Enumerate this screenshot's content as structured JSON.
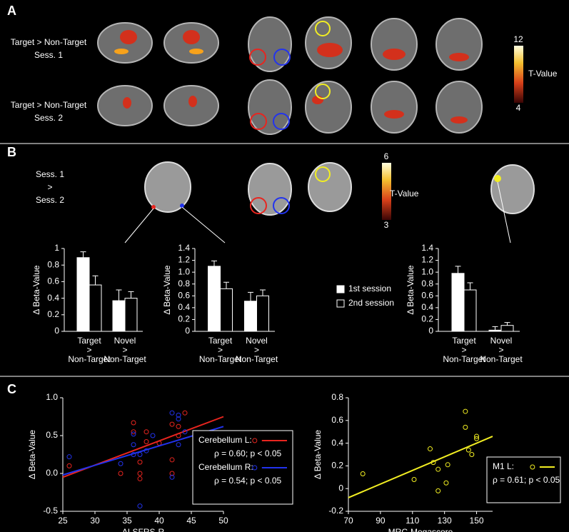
{
  "panel_labels": [
    "A",
    "B",
    "C"
  ],
  "panel_a": {
    "rows": [
      [
        "Target > Non-Target",
        "Sess. 1"
      ],
      [
        "Target > Non-Target",
        "Sess. 2"
      ]
    ],
    "colorbar": {
      "label": "T-Value",
      "lim": [
        4,
        12
      ],
      "ticks": [
        12,
        4
      ]
    }
  },
  "panel_b": {
    "contrast": [
      "Sess. 1",
      ">",
      "Sess. 2"
    ],
    "colorbar": {
      "label": "T-Value",
      "lim": [
        3,
        6
      ],
      "ticks": [
        6,
        3
      ]
    }
  },
  "chart_data": [
    {
      "type": "bar",
      "y_label": "Δ Beta-Value",
      "categories": [
        [
          "Target",
          ">",
          "Non-Target"
        ],
        [
          "Novel",
          ">",
          "Non-Target"
        ]
      ],
      "series": [
        {
          "name": "1st session",
          "color": "#ffffff",
          "values": [
            0.89,
            0.37
          ],
          "errors": [
            0.07,
            0.13
          ]
        },
        {
          "name": "2nd session",
          "color": "#000000",
          "values": [
            0.56,
            0.4
          ],
          "errors": [
            0.11,
            0.08
          ]
        }
      ],
      "ylim": [
        0,
        1
      ],
      "yticks": [
        0,
        0.2,
        0.4,
        0.6,
        0.8,
        1
      ]
    },
    {
      "type": "bar",
      "y_label": "Δ Beta-Value",
      "legend": true,
      "categories": [
        [
          "Target",
          ">",
          "Non-Target"
        ],
        [
          "Novel",
          ">",
          "Non-Target"
        ]
      ],
      "series": [
        {
          "name": "1st session",
          "color": "#ffffff",
          "values": [
            1.1,
            0.51
          ],
          "errors": [
            0.09,
            0.15
          ]
        },
        {
          "name": "2nd session",
          "color": "#000000",
          "values": [
            0.72,
            0.6
          ],
          "errors": [
            0.11,
            0.1
          ]
        }
      ],
      "ylim": [
        0,
        1.4
      ],
      "yticks": [
        0,
        0.2,
        0.4,
        0.6,
        0.8,
        {
          "value": 1,
          "label": "1.0"
        },
        1.2,
        1.4
      ]
    },
    {
      "type": "bar",
      "y_label": "Δ Beta-Value",
      "categories": [
        [
          "Target",
          ">",
          "Non-Target"
        ],
        [
          "Novel",
          ">",
          "Non-Target"
        ]
      ],
      "series": [
        {
          "name": "1st session",
          "color": "#ffffff",
          "values": [
            0.98,
            0.02
          ],
          "errors": [
            0.12,
            0.06
          ]
        },
        {
          "name": "2nd session",
          "color": "#000000",
          "values": [
            0.7,
            0.1
          ],
          "errors": [
            0.12,
            0.05
          ]
        }
      ],
      "ylim": [
        0,
        1.4
      ],
      "yticks": [
        0,
        0.2,
        0.4,
        0.6,
        0.8,
        {
          "value": 1,
          "label": "1.0"
        },
        1.2,
        1.4
      ]
    },
    {
      "type": "scatter",
      "x_label": "ALSFRS-R",
      "y_label": "Δ Beta-Value",
      "series": [
        {
          "name": "Cerebellum L:",
          "stat": "ρ = 0.60;  p < 0.05",
          "color": "#e8251f",
          "x": [
            26,
            34,
            36,
            36,
            37,
            37,
            37,
            38,
            38,
            40,
            42,
            42,
            43,
            43,
            44,
            42
          ],
          "values": [
            0.1,
            0.0,
            0.67,
            0.55,
            0.0,
            0.15,
            -0.07,
            0.42,
            0.55,
            0.4,
            0.18,
            0.65,
            0.5,
            0.62,
            0.8,
            0.0
          ],
          "fit": {
            "x": [
              25,
              50
            ],
            "y": [
              -0.05,
              0.75
            ]
          }
        },
        {
          "name": "Cerebellum R:",
          "stat": "ρ = 0.54;  p < 0.05",
          "color": "#2233ee",
          "x": [
            26,
            34,
            36,
            36,
            37,
            37,
            38,
            39,
            42,
            42,
            43,
            43,
            43,
            44,
            36
          ],
          "values": [
            0.22,
            0.13,
            0.38,
            0.25,
            0.25,
            -0.43,
            0.3,
            0.5,
            0.8,
            -0.05,
            0.77,
            0.72,
            0.38,
            0.55,
            0.52
          ],
          "fit": {
            "x": [
              25,
              50
            ],
            "y": [
              -0.02,
              0.62
            ]
          }
        }
      ],
      "xlim": [
        25,
        50
      ],
      "xticks": [
        25,
        30,
        35,
        40,
        45,
        50
      ],
      "ylim": [
        -0.5,
        1
      ],
      "yticks": [
        -0.5,
        {
          "value": 0,
          "label": "0.0"
        },
        0.5,
        {
          "value": 1,
          "label": "1.0"
        }
      ]
    },
    {
      "type": "scatter",
      "x_label": "MRC-Megascore",
      "y_label": "Δ Beta-Value",
      "series": [
        {
          "name": "M1 L:",
          "stat": "ρ = 0.61;  p < 0.05",
          "color": "#f2ee22",
          "x": [
            79,
            111,
            121,
            123,
            126,
            126,
            131,
            132,
            143,
            143,
            145,
            147,
            150,
            150
          ],
          "values": [
            0.13,
            0.08,
            0.35,
            0.23,
            -0.02,
            0.17,
            0.05,
            0.21,
            0.68,
            0.54,
            0.34,
            0.3,
            0.46,
            0.44
          ],
          "fit": {
            "x": [
              70,
              160
            ],
            "y": [
              -0.08,
              0.46
            ]
          }
        }
      ],
      "xlim": [
        70,
        160
      ],
      "xticks": [
        70,
        90,
        110,
        130,
        150
      ],
      "ylim": [
        -0.2,
        0.8
      ],
      "yticks": [
        -0.2,
        0,
        0.2,
        0.4,
        0.6,
        0.8
      ]
    }
  ]
}
